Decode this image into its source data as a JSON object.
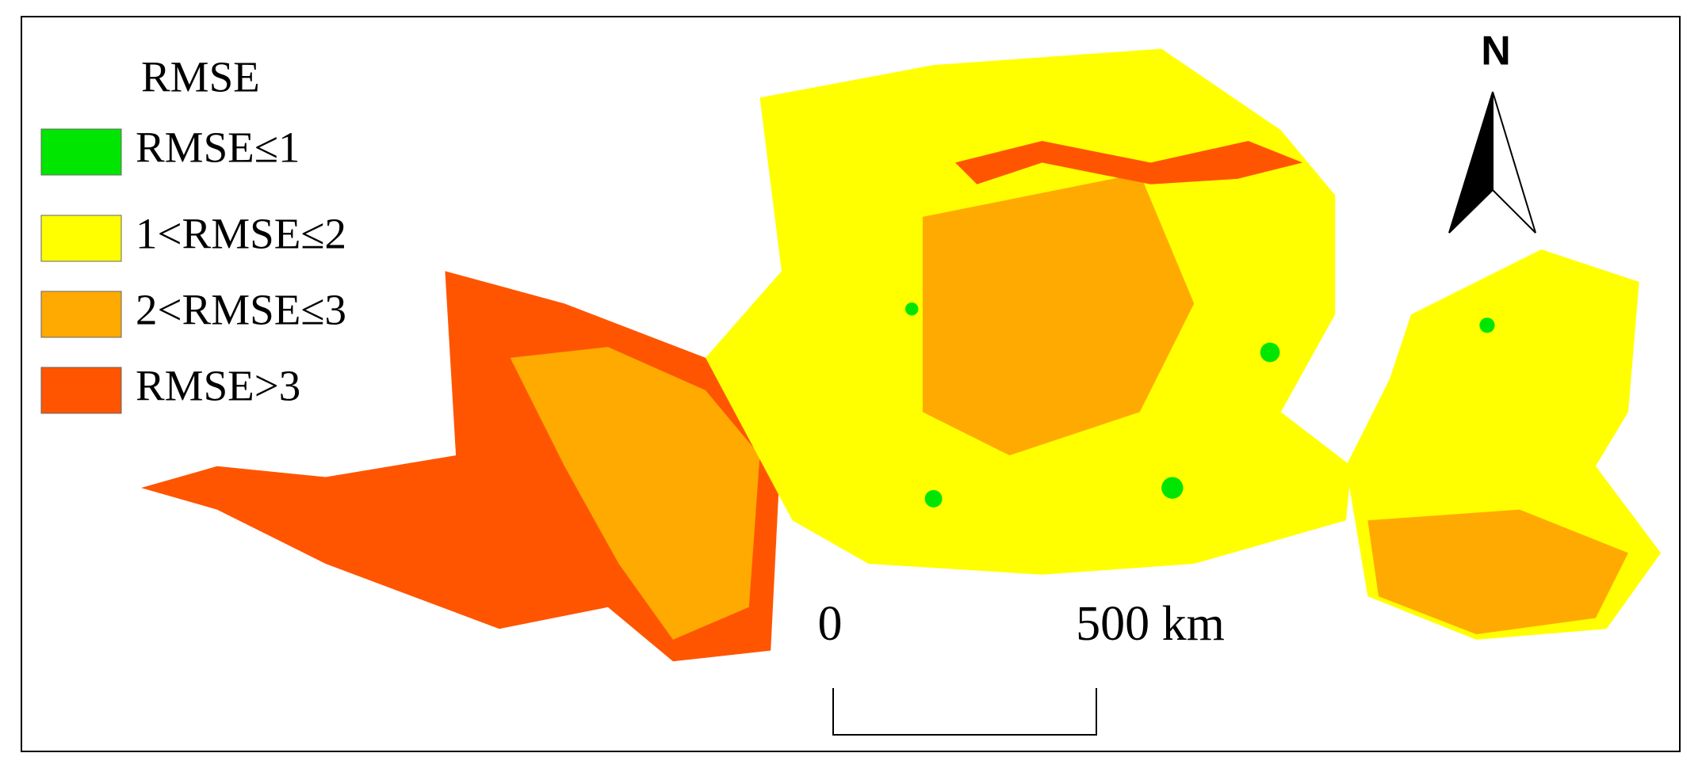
{
  "legend": {
    "title": "RMSE",
    "items": [
      {
        "label": "RMSE≤1",
        "color": "#00e600"
      },
      {
        "label": "1<RMSE≤2",
        "color": "#ffff00"
      },
      {
        "label": "2<RMSE≤3",
        "color": "#ffaa00"
      },
      {
        "label": "RMSE>3",
        "color": "#ff5500"
      }
    ]
  },
  "north_arrow": {
    "label": "N"
  },
  "scale_bar": {
    "labels": [
      "0",
      "500 km"
    ]
  }
}
